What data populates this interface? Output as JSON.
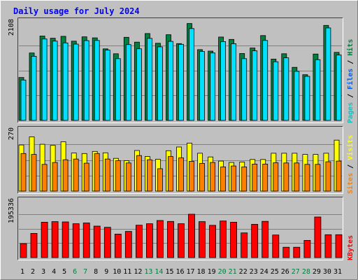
{
  "chart_data": [
    {
      "type": "bar",
      "title": "Daily usage for July 2024",
      "ylabel": "2108",
      "categories": [
        "1",
        "2",
        "3",
        "4",
        "5",
        "6",
        "7",
        "8",
        "9",
        "10",
        "11",
        "12",
        "13",
        "14",
        "15",
        "16",
        "17",
        "18",
        "19",
        "20",
        "21",
        "22",
        "23",
        "24",
        "25",
        "26",
        "27",
        "28",
        "29",
        "30",
        "31"
      ],
      "weekend_days": [
        "6",
        "7",
        "13",
        "14",
        "20",
        "21",
        "27",
        "28"
      ],
      "ylim": [
        0,
        2108
      ],
      "legend": [
        "Pages",
        "Files",
        "Hits"
      ],
      "series": [
        {
          "name": "Hits",
          "color": "#008040",
          "values": [
            904,
            1420,
            1776,
            1730,
            1770,
            1668,
            1760,
            1738,
            1506,
            1404,
            1750,
            1648,
            1830,
            1624,
            1804,
            1617,
            2040,
            1490,
            1460,
            1755,
            1705,
            1410,
            1524,
            1786,
            1292,
            1404,
            1118,
            963,
            1397,
            2000,
            1433
          ]
        },
        {
          "name": "Files",
          "color": "#00e0ff",
          "values": [
            850,
            1350,
            1715,
            1670,
            1632,
            1607,
            1680,
            1683,
            1480,
            1300,
            1597,
            1508,
            1728,
            1550,
            1665,
            1603,
            1934,
            1450,
            1420,
            1660,
            1615,
            1300,
            1466,
            1684,
            1236,
            1318,
            1033,
            928,
            1280,
            1947,
            1377
          ]
        }
      ]
    },
    {
      "type": "bar",
      "ylabel": "270",
      "ylim": [
        0,
        270
      ],
      "legend": [
        "Sites",
        "Visits"
      ],
      "series": [
        {
          "name": "Visits",
          "color": "#ffff00",
          "values": [
            200,
            235,
            203,
            198,
            214,
            165,
            163,
            172,
            166,
            142,
            132,
            176,
            150,
            138,
            175,
            191,
            208,
            164,
            148,
            130,
            124,
            126,
            137,
            137,
            164,
            164,
            164,
            159,
            159,
            164,
            221
          ]
        },
        {
          "name": "Sites",
          "color": "#ff8000",
          "values": [
            163,
            159,
            116,
            124,
            136,
            139,
            121,
            163,
            139,
            132,
            122,
            154,
            136,
            97,
            150,
            144,
            129,
            120,
            124,
            105,
            109,
            105,
            117,
            117,
            123,
            122,
            122,
            116,
            116,
            127,
            130
          ]
        }
      ]
    },
    {
      "type": "bar",
      "ylabel": "195336",
      "ylim": [
        0,
        195336
      ],
      "legend": [
        "KBytes"
      ],
      "series": [
        {
          "name": "KBytes",
          "color": "#ff0000",
          "values": [
            47000,
            81500,
            119000,
            121000,
            120000,
            114000,
            116500,
            106000,
            102000,
            79000,
            88000,
            109000,
            114000,
            124800,
            121600,
            114000,
            146000,
            121000,
            108500,
            123000,
            119000,
            83000,
            112000,
            122000,
            76000,
            34800,
            34800,
            58000,
            136500,
            77000,
            77000
          ]
        }
      ]
    }
  ]
}
